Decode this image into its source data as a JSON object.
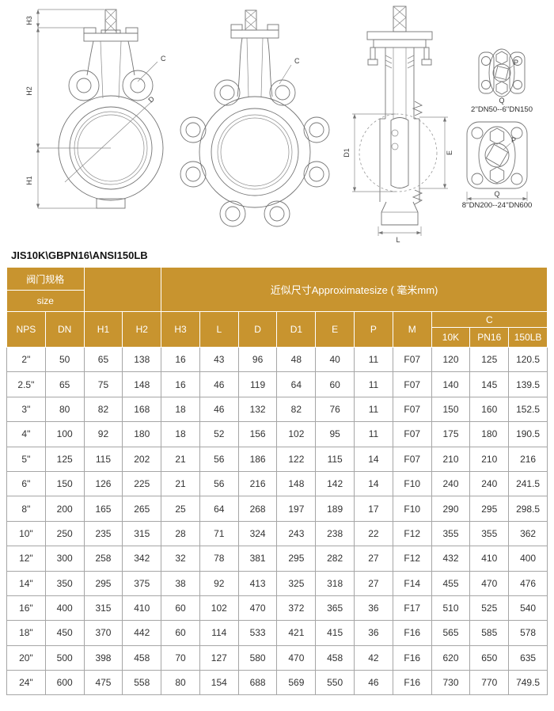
{
  "table": {
    "title": "JIS10K\\GBPN16\\ANSI150LB",
    "header": {
      "spec_label": "阀门规格",
      "size_label": "size",
      "approx_label": "近似尺寸Approximatesize ( 毫米mm)",
      "c_label": "C",
      "columns": [
        "NPS",
        "DN",
        "H1",
        "H2",
        "H3",
        "L",
        "D",
        "D1",
        "E",
        "P",
        "M"
      ],
      "c_sub": [
        "10K",
        "PN16",
        "150LB"
      ]
    },
    "rows": [
      [
        "2\"",
        "50",
        "65",
        "138",
        "16",
        "43",
        "96",
        "48",
        "40",
        "11",
        "F07",
        "120",
        "125",
        "120.5"
      ],
      [
        "2.5\"",
        "65",
        "75",
        "148",
        "16",
        "46",
        "119",
        "64",
        "60",
        "11",
        "F07",
        "140",
        "145",
        "139.5"
      ],
      [
        "3\"",
        "80",
        "82",
        "168",
        "18",
        "46",
        "132",
        "82",
        "76",
        "11",
        "F07",
        "150",
        "160",
        "152.5"
      ],
      [
        "4\"",
        "100",
        "92",
        "180",
        "18",
        "52",
        "156",
        "102",
        "95",
        "11",
        "F07",
        "175",
        "180",
        "190.5"
      ],
      [
        "5\"",
        "125",
        "115",
        "202",
        "21",
        "56",
        "186",
        "122",
        "115",
        "14",
        "F07",
        "210",
        "210",
        "216"
      ],
      [
        "6\"",
        "150",
        "126",
        "225",
        "21",
        "56",
        "216",
        "148",
        "142",
        "14",
        "F10",
        "240",
        "240",
        "241.5"
      ],
      [
        "8\"",
        "200",
        "165",
        "265",
        "25",
        "64",
        "268",
        "197",
        "189",
        "17",
        "F10",
        "290",
        "295",
        "298.5"
      ],
      [
        "10\"",
        "250",
        "235",
        "315",
        "28",
        "71",
        "324",
        "243",
        "238",
        "22",
        "F12",
        "355",
        "355",
        "362"
      ],
      [
        "12\"",
        "300",
        "258",
        "342",
        "32",
        "78",
        "381",
        "295",
        "282",
        "27",
        "F12",
        "432",
        "410",
        "400"
      ],
      [
        "14\"",
        "350",
        "295",
        "375",
        "38",
        "92",
        "413",
        "325",
        "318",
        "27",
        "F14",
        "455",
        "470",
        "476"
      ],
      [
        "16\"",
        "400",
        "315",
        "410",
        "60",
        "102",
        "470",
        "372",
        "365",
        "36",
        "F17",
        "510",
        "525",
        "540"
      ],
      [
        "18\"",
        "450",
        "370",
        "442",
        "60",
        "114",
        "533",
        "421",
        "415",
        "36",
        "F16",
        "565",
        "585",
        "578"
      ],
      [
        "20\"",
        "500",
        "398",
        "458",
        "70",
        "127",
        "580",
        "470",
        "458",
        "42",
        "F16",
        "620",
        "650",
        "635"
      ],
      [
        "24\"",
        "600",
        "475",
        "558",
        "80",
        "154",
        "688",
        "569",
        "550",
        "46",
        "F16",
        "730",
        "770",
        "749.5"
      ]
    ]
  },
  "drawings": {
    "front_view": {
      "h3": "H3",
      "h2": "H2",
      "h1": "H1",
      "c": "C",
      "d": "D"
    },
    "lug_view": {
      "c": "C"
    },
    "section_view": {
      "d1": "D1",
      "e": "E",
      "l": "L"
    },
    "pad_small": {
      "p": "P",
      "q": "Q",
      "caption": "2''DN50--6''DN150"
    },
    "pad_large": {
      "p": "P",
      "q": "Q",
      "caption": "8''DN200--24''DN600"
    }
  },
  "colors": {
    "header_bg": "#c8942f",
    "header_text": "#ffffff",
    "body_border": "#a6a6a6",
    "body_text": "#333333",
    "line_color": "#757575"
  }
}
